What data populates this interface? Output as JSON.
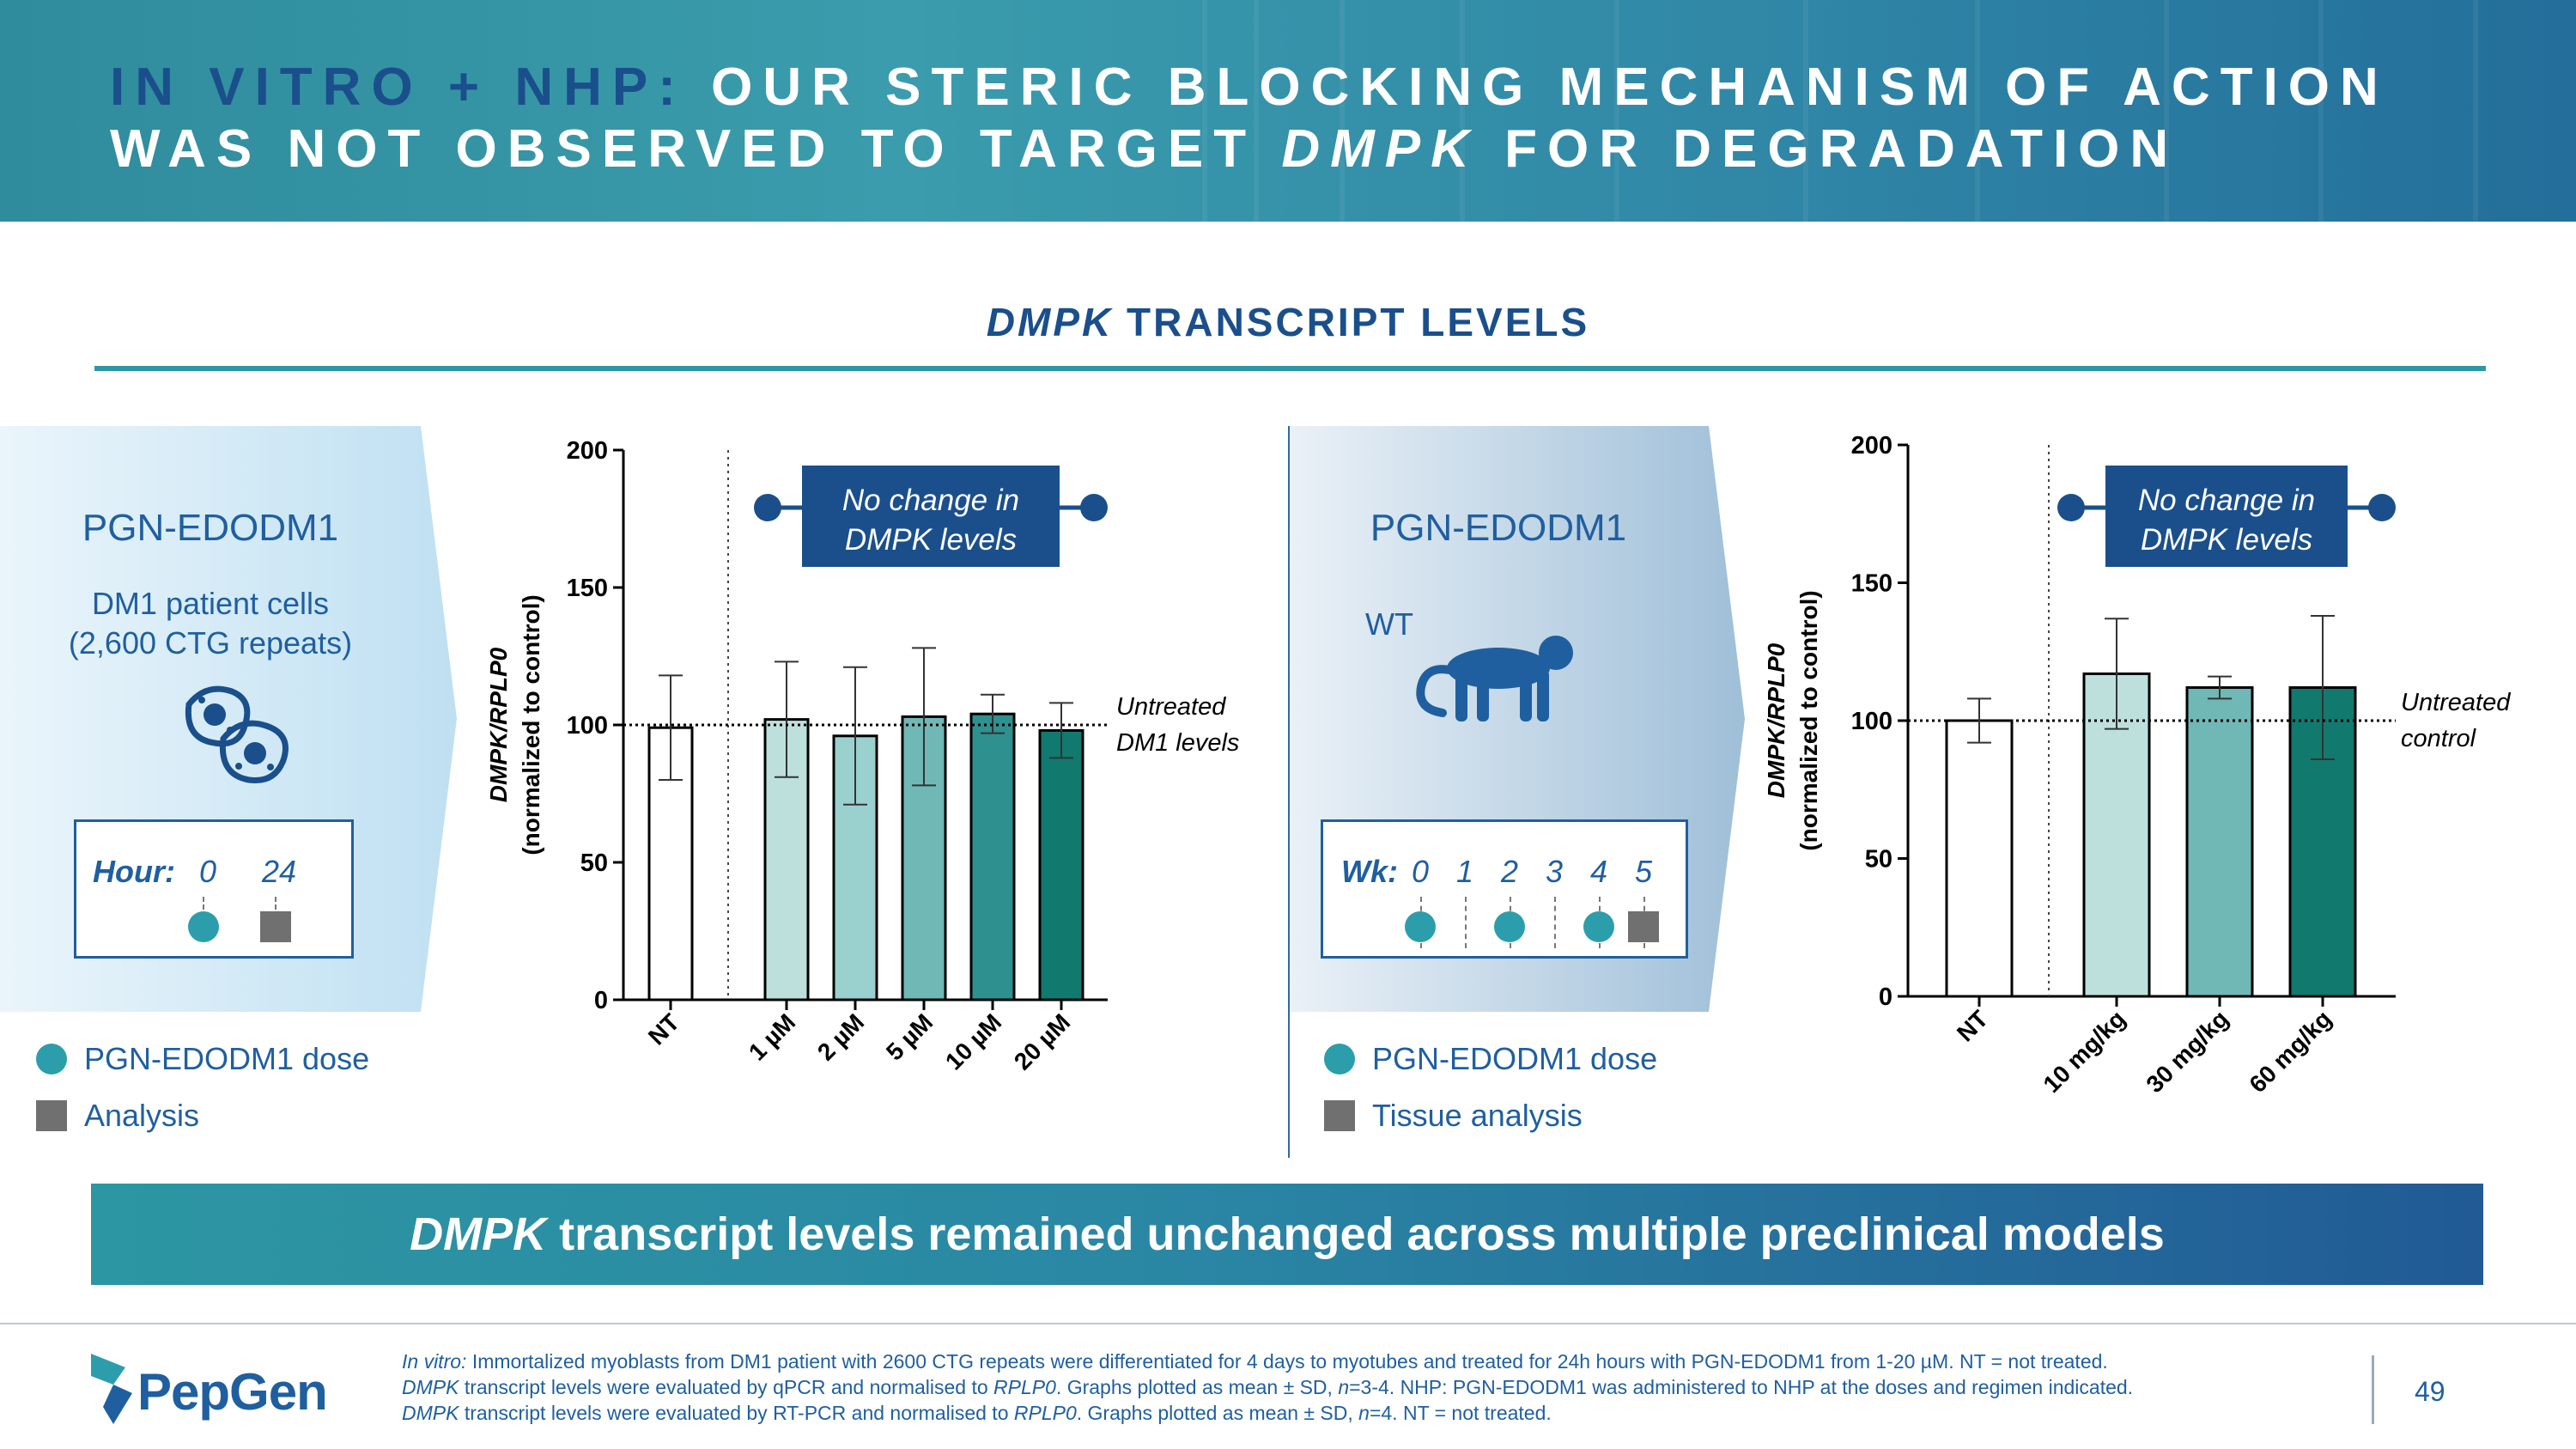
{
  "header": {
    "title_accent": "IN VITRO + NHP:",
    "title_part1": "OUR STERIC BLOCKING MECHANISM OF ACTION WAS NOT OBSERVED TO TARGET",
    "title_italic": "DMPK",
    "title_part2": "FOR DEGRADATION"
  },
  "section": {
    "title_italic": "DMPK",
    "title_rest": "TRANSCRIPT LEVELS"
  },
  "left_panel": {
    "drug": "PGN-EDODM1",
    "cells_line1": "DM1 patient cells",
    "cells_line2": "(2,600 CTG repeats)",
    "schedule_label": "Hour:",
    "schedule_ticks": [
      "0",
      "24"
    ],
    "legend_dose": "PGN-EDODM1 dose",
    "legend_analysis": "Analysis",
    "icon": "cells-icon"
  },
  "right_panel": {
    "drug": "PGN-EDODM1",
    "model": "WT",
    "schedule_label": "Wk:",
    "schedule_ticks": [
      "0",
      "1",
      "2",
      "3",
      "4",
      "5"
    ],
    "legend_dose": "PGN-EDODM1 dose",
    "legend_analysis": "Tissue analysis",
    "icon": "monkey-icon"
  },
  "banner": {
    "italic": "DMPK",
    "rest": "transcript levels remained unchanged across multiple preclinical models"
  },
  "footnote": {
    "l1_italic": "In vitro:",
    "l1_rest": "Immortalized myoblasts from DM1 patient with 2600 CTG repeats were differentiated for 4 days to myotubes and treated for 24h hours with PGN-EDODM1 from 1-20 µM. NT = not treated.",
    "l2_italic": "DMPK",
    "l2_rest": "transcript levels were evaluated by qPCR and normalised to",
    "l2_italic2": "RPLP0",
    "l2_rest2": ". Graphs plotted as mean ± SD,",
    "l2_n": "n",
    "l2_rest3": "=3-4. NHP: PGN-EDODM1 was administered to NHP at the doses and regimen indicated.",
    "l3_italic": "DMPK",
    "l3_rest": "transcript levels were evaluated by RT-PCR and normalised to",
    "l3_italic2": "RPLP0",
    "l3_rest2": ". Graphs plotted as mean ± SD,",
    "l3_n": "n",
    "l3_rest3": "=4. NT = not treated."
  },
  "footer": {
    "logo": "PepGen",
    "page": "49"
  },
  "colors": {
    "navy": "#1a4f8c",
    "teal": "#2c9eab",
    "c_nt": "#ffffff",
    "c1": "#bde0dd",
    "c2": "#9ad1cf",
    "c3": "#6fb8b6",
    "c4": "#2f918f",
    "c5": "#12796f",
    "nhp_c1": "#bde0dd",
    "nhp_c2": "#6fb8b6",
    "nhp_c3": "#12796f"
  },
  "chart_data": [
    {
      "type": "bar",
      "categories": [
        "NT",
        "1 µM",
        "2 µM",
        "5 µM",
        "10 µM",
        "20 µM"
      ],
      "values": [
        99,
        102,
        96,
        103,
        104,
        98
      ],
      "errors": [
        19,
        21,
        25,
        25,
        7,
        10
      ],
      "ylabel_italic": "DMPK/RPLP0",
      "ylabel_2": "(normalized to control)",
      "ylim": [
        0,
        200
      ],
      "yticks": [
        "0",
        "50",
        "100",
        "150",
        "200"
      ],
      "reference_line": 100,
      "reference_label_1": "Untreated",
      "reference_label_2": "DM1 levels",
      "callout_1": "No change in",
      "callout_2": "DMPK levels"
    },
    {
      "type": "bar",
      "categories": [
        "NT",
        "10 mg/kg",
        "30 mg/kg",
        "60 mg/kg"
      ],
      "values": [
        100,
        117,
        112,
        112
      ],
      "errors": [
        8,
        20,
        4,
        26
      ],
      "ylabel_italic": "DMPK/RPLP0",
      "ylabel_2": "(normalized to control)",
      "ylim": [
        0,
        200
      ],
      "yticks": [
        "0",
        "50",
        "100",
        "150",
        "200"
      ],
      "reference_line": 100,
      "reference_label_1": "Untreated",
      "reference_label_2": "control",
      "callout_1": "No change in",
      "callout_2": "DMPK levels"
    }
  ]
}
